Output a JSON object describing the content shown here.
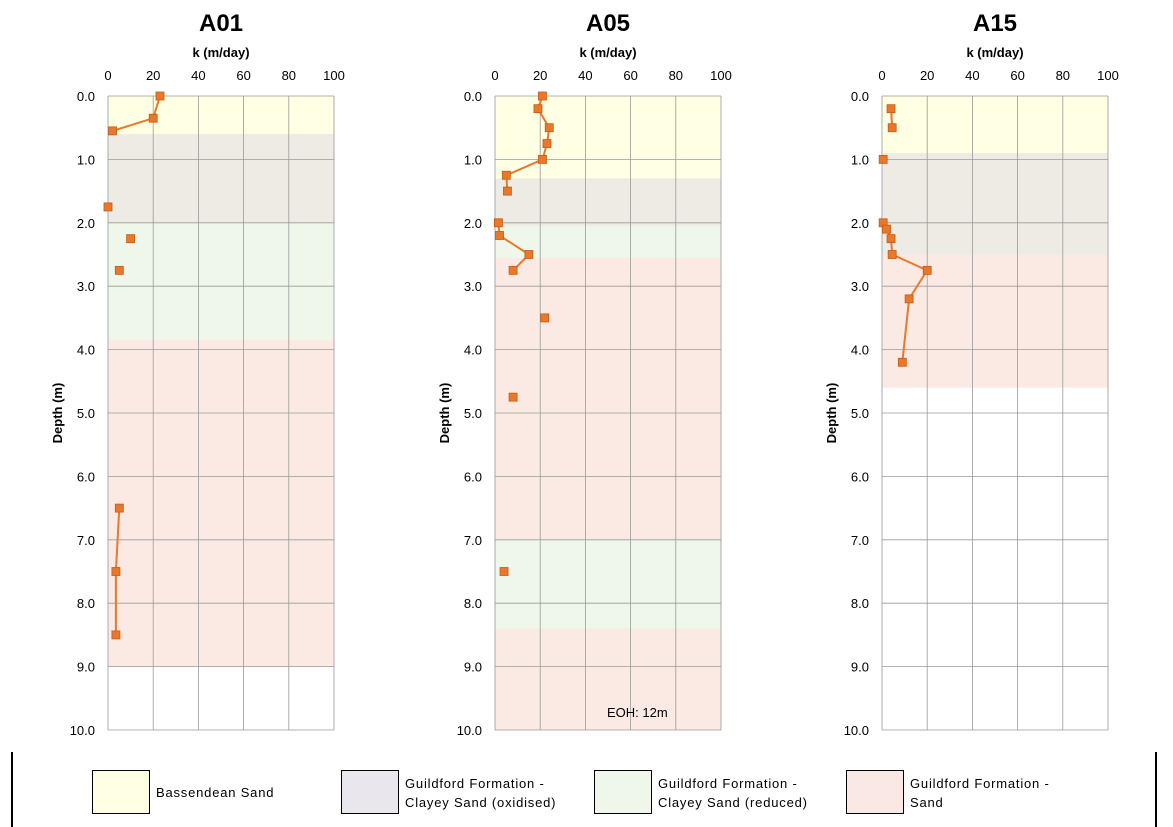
{
  "chart_data": [
    {
      "type": "line",
      "title": "A01",
      "xlabel": "k (m/day)",
      "ylabel": "Depth (m)",
      "xlim": [
        0,
        100
      ],
      "ylim": [
        0,
        10
      ],
      "x_ticks": [
        "0",
        "20",
        "40",
        "60",
        "80",
        "100"
      ],
      "y_ticks": [
        "0.0",
        "1.0",
        "2.0",
        "3.0",
        "4.0",
        "5.0",
        "6.0",
        "7.0",
        "8.0",
        "9.0",
        "10.0"
      ],
      "y_inverted": true,
      "grid": true,
      "marker": "square",
      "series_color": "#E8782C",
      "segments": [
        [
          [
            23,
            0.0
          ],
          [
            20,
            0.35
          ],
          [
            2,
            0.55
          ]
        ],
        [
          [
            0,
            1.75
          ]
        ],
        [
          [
            10,
            2.25
          ]
        ],
        [
          [
            5,
            2.75
          ]
        ],
        [
          [
            5,
            6.5
          ],
          [
            3.5,
            7.5
          ],
          [
            3.5,
            8.5
          ]
        ]
      ],
      "layers": [
        {
          "unit": "Bassendean Sand",
          "top": 0.0,
          "bottom": 0.6
        },
        {
          "unit": "Guildford Formation - Clayey Sand (oxidised)",
          "top": 0.6,
          "bottom": 2.0
        },
        {
          "unit": "Guildford Formation - Clayey Sand (reduced)",
          "top": 2.0,
          "bottom": 3.85
        },
        {
          "unit": "Guildford Formation - Sand",
          "top": 3.85,
          "bottom": 9.0
        }
      ],
      "annotation": ""
    },
    {
      "type": "line",
      "title": "A05",
      "xlabel": "k (m/day)",
      "ylabel": "Depth (m)",
      "xlim": [
        0,
        100
      ],
      "ylim": [
        0,
        10
      ],
      "x_ticks": [
        "0",
        "20",
        "40",
        "60",
        "80",
        "100"
      ],
      "y_ticks": [
        "0.0",
        "1.0",
        "2.0",
        "3.0",
        "4.0",
        "5.0",
        "6.0",
        "7.0",
        "8.0",
        "9.0",
        "10.0"
      ],
      "y_inverted": true,
      "grid": true,
      "marker": "square",
      "series_color": "#E8782C",
      "segments": [
        [
          [
            21,
            0.0
          ],
          [
            19,
            0.2
          ],
          [
            24,
            0.5
          ],
          [
            23,
            0.75
          ],
          [
            21,
            1.0
          ],
          [
            5,
            1.25
          ],
          [
            5.5,
            1.5
          ]
        ],
        [
          [
            1.5,
            2.0
          ],
          [
            2,
            2.2
          ],
          [
            15,
            2.5
          ],
          [
            8,
            2.75
          ]
        ],
        [
          [
            22,
            3.5
          ]
        ],
        [
          [
            8,
            4.75
          ]
        ],
        [
          [
            4,
            7.5
          ]
        ]
      ],
      "layers": [
        {
          "unit": "Bassendean Sand",
          "top": 0.0,
          "bottom": 1.3
        },
        {
          "unit": "Guildford Formation - Clayey Sand (oxidised)",
          "top": 1.3,
          "bottom": 2.05
        },
        {
          "unit": "Guildford Formation - Clayey Sand (reduced)",
          "top": 2.05,
          "bottom": 2.55
        },
        {
          "unit": "Guildford Formation - Sand",
          "top": 2.55,
          "bottom": 7.0
        },
        {
          "unit": "Guildford Formation - Clayey Sand (reduced)",
          "top": 7.0,
          "bottom": 8.4
        },
        {
          "unit": "Guildford Formation - Sand",
          "top": 8.4,
          "bottom": 10.0
        }
      ],
      "annotation": "EOH: 12m"
    },
    {
      "type": "line",
      "title": "A15",
      "xlabel": "k (m/day)",
      "ylabel": "Depth (m)",
      "xlim": [
        0,
        100
      ],
      "ylim": [
        0,
        10
      ],
      "x_ticks": [
        "0",
        "20",
        "40",
        "60",
        "80",
        "100"
      ],
      "y_ticks": [
        "0.0",
        "1.0",
        "2.0",
        "3.0",
        "4.0",
        "5.0",
        "6.0",
        "7.0",
        "8.0",
        "9.0",
        "10.0"
      ],
      "y_inverted": true,
      "grid": true,
      "marker": "square",
      "series_color": "#E8782C",
      "segments": [
        [
          [
            4,
            0.2
          ],
          [
            4.5,
            0.5
          ]
        ],
        [
          [
            0.5,
            1.0
          ]
        ],
        [
          [
            0.5,
            2.0
          ],
          [
            2,
            2.1
          ],
          [
            4,
            2.25
          ],
          [
            4.5,
            2.5
          ],
          [
            20,
            2.75
          ],
          [
            12,
            3.2
          ],
          [
            9,
            4.2
          ]
        ]
      ],
      "layers": [
        {
          "unit": "Bassendean Sand",
          "top": 0.0,
          "bottom": 0.9
        },
        {
          "unit": "Guildford Formation - Clayey Sand (oxidised)",
          "top": 0.9,
          "bottom": 2.5
        },
        {
          "unit": "Guildford Formation - Sand",
          "top": 2.5,
          "bottom": 4.6
        }
      ],
      "annotation": ""
    }
  ],
  "legend": [
    {
      "label": "Bassendean Sand",
      "color": "#FFFFE3"
    },
    {
      "label": "Guildford Formation -\nClayey Sand (oxidised)",
      "color": "#E9E6EE"
    },
    {
      "label": "Guildford Formation -\nClayey Sand (reduced)",
      "color": "#EEF7EA"
    },
    {
      "label": "Guildford Formation -\nSand",
      "color": "#F9E8E4"
    }
  ],
  "layer_colors": {
    "Bassendean Sand": "#FFFFE3",
    "Guildford Formation - Clayey Sand (oxidised)": "#EDEBE3",
    "Guildford Formation - Clayey Sand (reduced)": "#EEF7EA",
    "Guildford Formation - Sand": "#FBEAE3"
  }
}
